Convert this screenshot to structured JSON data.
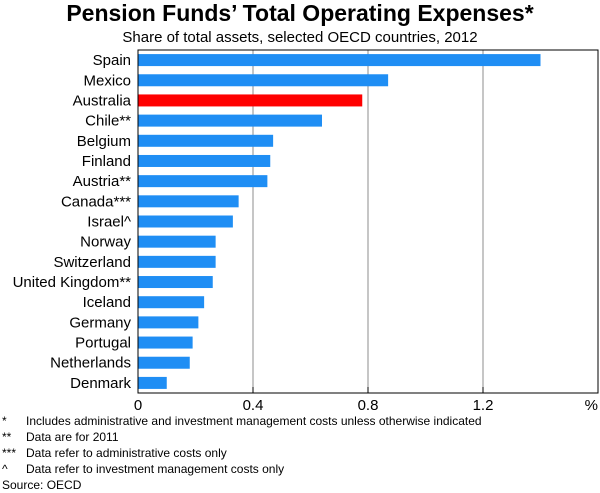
{
  "chart_data": {
    "type": "bar",
    "orientation": "horizontal",
    "title": "Pension Funds’ Total Operating Expenses*",
    "subtitle": "Share of total assets, selected OECD countries, 2012",
    "unit_label": "%",
    "categories": [
      "Spain",
      "Mexico",
      "Australia",
      "Chile**",
      "Belgium",
      "Finland",
      "Austria**",
      "Canada***",
      "Israel^",
      "Norway",
      "Switzerland",
      "United Kingdom**",
      "Iceland",
      "Germany",
      "Portugal",
      "Netherlands",
      "Denmark"
    ],
    "values": [
      1.4,
      0.87,
      0.78,
      0.64,
      0.47,
      0.46,
      0.45,
      0.35,
      0.33,
      0.27,
      0.27,
      0.26,
      0.23,
      0.21,
      0.19,
      0.18,
      0.1
    ],
    "highlight_category": "Australia",
    "xlim": [
      0,
      1.6
    ],
    "xticks": [
      0,
      0.4,
      0.8,
      1.2
    ],
    "xtick_labels": [
      "0",
      "0.4",
      "0.8",
      "1.2"
    ],
    "grid": true,
    "colors": {
      "bar": "#1f8ef4",
      "highlight": "#ff0000",
      "grid": "#8c8c8c"
    }
  },
  "notes": [
    {
      "mark": "*",
      "text": "Includes administrative and investment management costs unless otherwise indicated"
    },
    {
      "mark": "**",
      "text": "Data are for 2011"
    },
    {
      "mark": "***",
      "text": "Data refer to administrative costs only"
    },
    {
      "mark": "^",
      "text": "Data refer to investment management costs only"
    }
  ],
  "source": "Source: OECD"
}
